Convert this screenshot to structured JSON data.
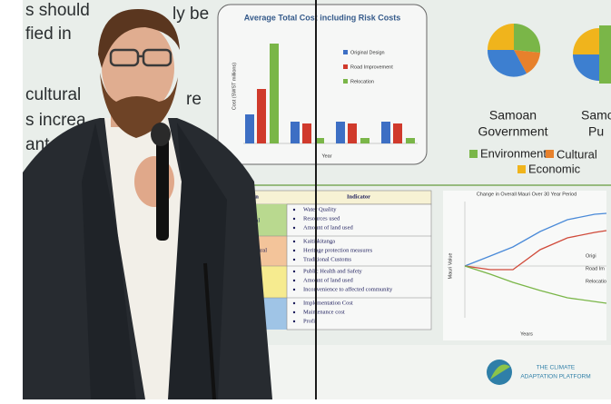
{
  "slide": {
    "left_text": [
      "s should",
      "ly be",
      "fied in",
      "cultural",
      "re",
      "s increa",
      "ant"
    ],
    "bar_chart": {
      "title": "Average Total Cost including Risk Costs",
      "y_axis": "Cost (SWST millions)",
      "x_axis": "Year",
      "legend": [
        "Original Design",
        "Road Improvement",
        "Relocation"
      ]
    },
    "pies": {
      "first": "Samoan",
      "first_2": "Government",
      "second": "Samo",
      "second_2": "Pu",
      "legend": [
        "Environment",
        "Cultural",
        "Economic"
      ]
    },
    "table": {
      "headers": [
        "imension",
        "Indicator"
      ],
      "dimensions": [
        "onmental",
        "ural"
      ],
      "indicators": [
        "Water Quality",
        "Resources used",
        "Amount of land used",
        "Kaitiakitanga",
        "Heritage protection measures",
        "Traditional Customs",
        "Public Health and Safety",
        "Amount of land used",
        "Inconvenience to affected community",
        "Implementation Cost",
        "Maintenance cost",
        "Profit"
      ]
    },
    "line_chart": {
      "title": "Change in Overall Mauri Over 30 Year Period",
      "y_axis": "Mauri Value",
      "x_axis": "Years",
      "legend": [
        "Origi",
        "Road Im",
        "Relocatio"
      ]
    },
    "logo": {
      "line1": "THE CLIMATE",
      "line2": "ADAPTATION PLATFORM"
    }
  }
}
